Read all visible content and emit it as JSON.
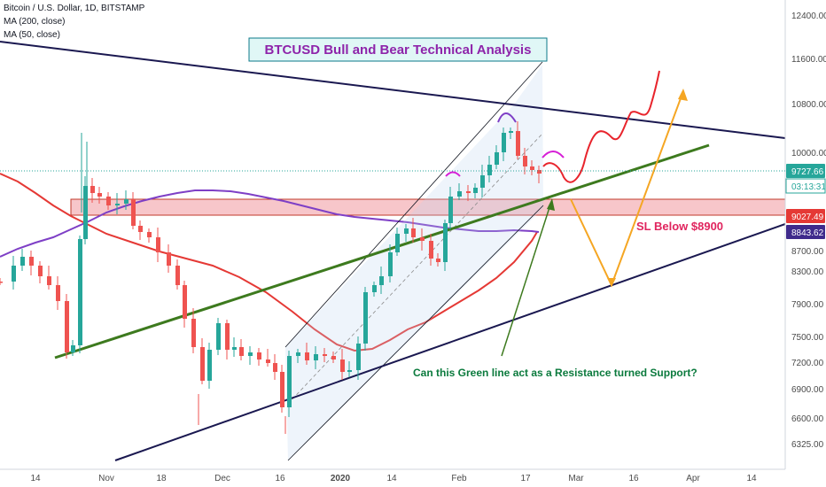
{
  "header": {
    "symbol_line": "Bitcoin / U.S. Dollar, 1D, BITSTAMP",
    "ma200_label": "MA (200, close)",
    "ma50_label": "MA (50, close)"
  },
  "colors": {
    "up_candle": "#26a69a",
    "down_candle": "#ef5350",
    "ma200": "#e53935",
    "ma50": "#7e3fc6",
    "green_trendline": "#3d7a1e",
    "navy_trendline": "#1a1850",
    "projection_red": "#e8242c",
    "projection_orange": "#f5a623",
    "resistance_zone": "#f4b3b8",
    "title_color": "#8e24aa",
    "annotation_green": "#0b7a3d",
    "sl_color": "#e0245e"
  },
  "chart_data": {
    "type": "candlestick",
    "title": "BTCUSD Bull and Bear Technical Analysis",
    "x_ticks": [
      "14",
      "Nov",
      "18",
      "Dec",
      "16",
      "2020",
      "14",
      "Feb",
      "17",
      "Mar",
      "16",
      "Apr",
      "14"
    ],
    "y_ticks": [
      6325,
      6600,
      6900,
      7200,
      7500,
      7900,
      8300,
      8700,
      10000,
      10800,
      11600,
      12400
    ],
    "ylim": [
      6100,
      12700
    ],
    "current_price_label": "9727.66",
    "countdown_label": "03:13:31",
    "ma200_value_label": "9027.49",
    "ma50_value_label": "8843.62",
    "resistance_zone": {
      "low": 8950,
      "high": 9150
    },
    "sl_text": "SL Below $8900",
    "question_text": "Can this Green line act as a Resistance turned Support?",
    "grid": false,
    "legend_position": "top-left"
  }
}
